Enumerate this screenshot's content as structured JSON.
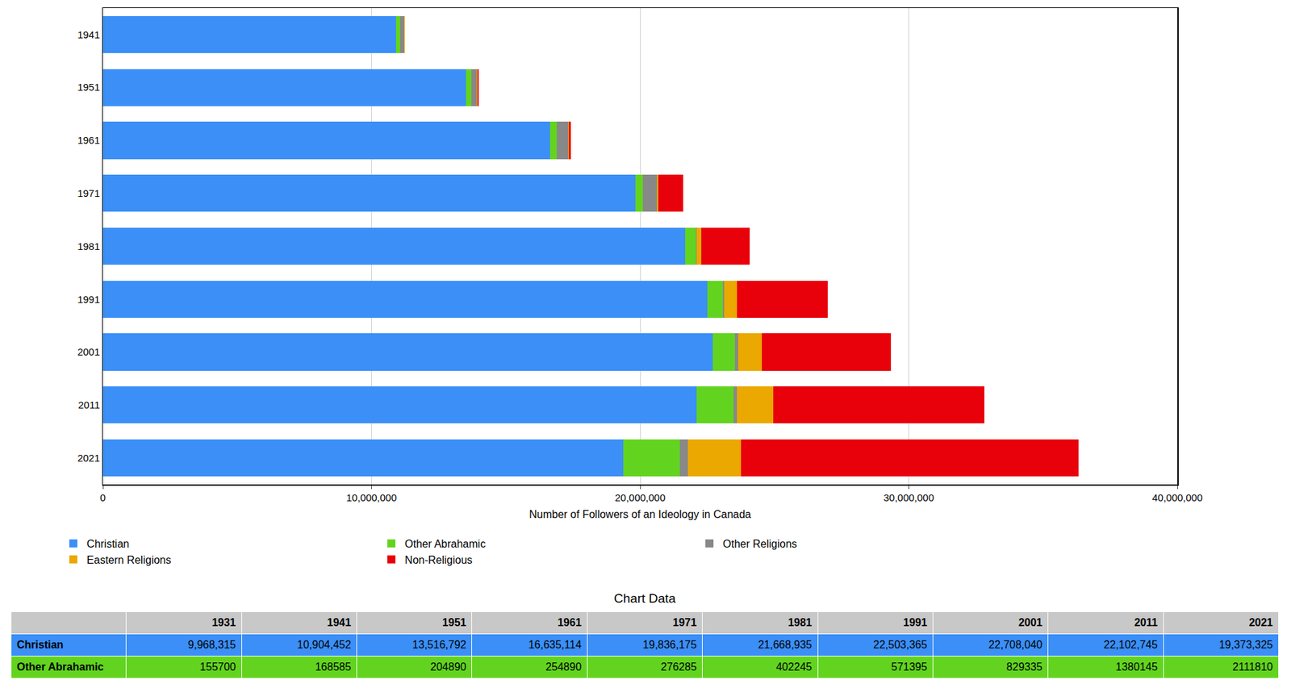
{
  "chart_data": {
    "type": "bar",
    "orientation": "horizontal",
    "stacked": true,
    "grid": true,
    "legend": "bottom",
    "x_label": "Number of Followers of an Ideology in Canada",
    "categories": [
      "1941",
      "1951",
      "1961",
      "1971",
      "1981",
      "1991",
      "2001",
      "2011",
      "2021"
    ],
    "xlim": [
      0,
      40000000
    ],
    "xticks": [
      0,
      {
        "value": 10000000,
        "label": "10,000,000"
      },
      {
        "value": 20000000,
        "label": "20,000,000"
      },
      {
        "value": 30000000,
        "label": "30,000,000"
      },
      {
        "value": 40000000,
        "label": "40,000,000"
      }
    ],
    "series": [
      {
        "name": "Christian",
        "color": "#3b8ff7",
        "values": [
          10904452,
          13516792,
          16635114,
          19836175,
          21668935,
          22503365,
          22708040,
          22102745,
          19373325
        ]
      },
      {
        "name": "Other Abrahamic",
        "color": "#62d41f",
        "values": [
          168585,
          204890,
          254890,
          276285,
          402245,
          571395,
          829335,
          1380145,
          2111810
        ]
      },
      {
        "name": "Other Religions",
        "color": "#888888",
        "values": [
          150000,
          200000,
          430000,
          520000,
          30000,
          60000,
          110000,
          130000,
          300000
        ]
      },
      {
        "name": "Eastern Religions",
        "color": "#eaa800",
        "values": [
          5000,
          10000,
          20000,
          40000,
          180000,
          460000,
          890000,
          1350000,
          1960000
        ]
      },
      {
        "name": "Non-Religious",
        "color": "#e8000b",
        "values": [
          20000,
          60000,
          90000,
          930000,
          1800000,
          3400000,
          4800000,
          7850000,
          12580000
        ]
      }
    ]
  },
  "table": {
    "title": "Chart Data",
    "columns": [
      "1931",
      "1941",
      "1951",
      "1961",
      "1971",
      "1981",
      "1991",
      "2001",
      "2011",
      "2021"
    ],
    "rows": [
      {
        "label": "Christian",
        "values": [
          "9,968,315",
          "10,904,452",
          "13,516,792",
          "16,635,114",
          "19,836,175",
          "21,668,935",
          "22,503,365",
          "22,708,040",
          "22,102,745",
          "19,373,325"
        ]
      },
      {
        "label": "Other Abrahamic",
        "values": [
          "155700",
          "168585",
          "204890",
          "254890",
          "276285",
          "402245",
          "571395",
          "829335",
          "1380145",
          "2111810"
        ]
      }
    ]
  }
}
